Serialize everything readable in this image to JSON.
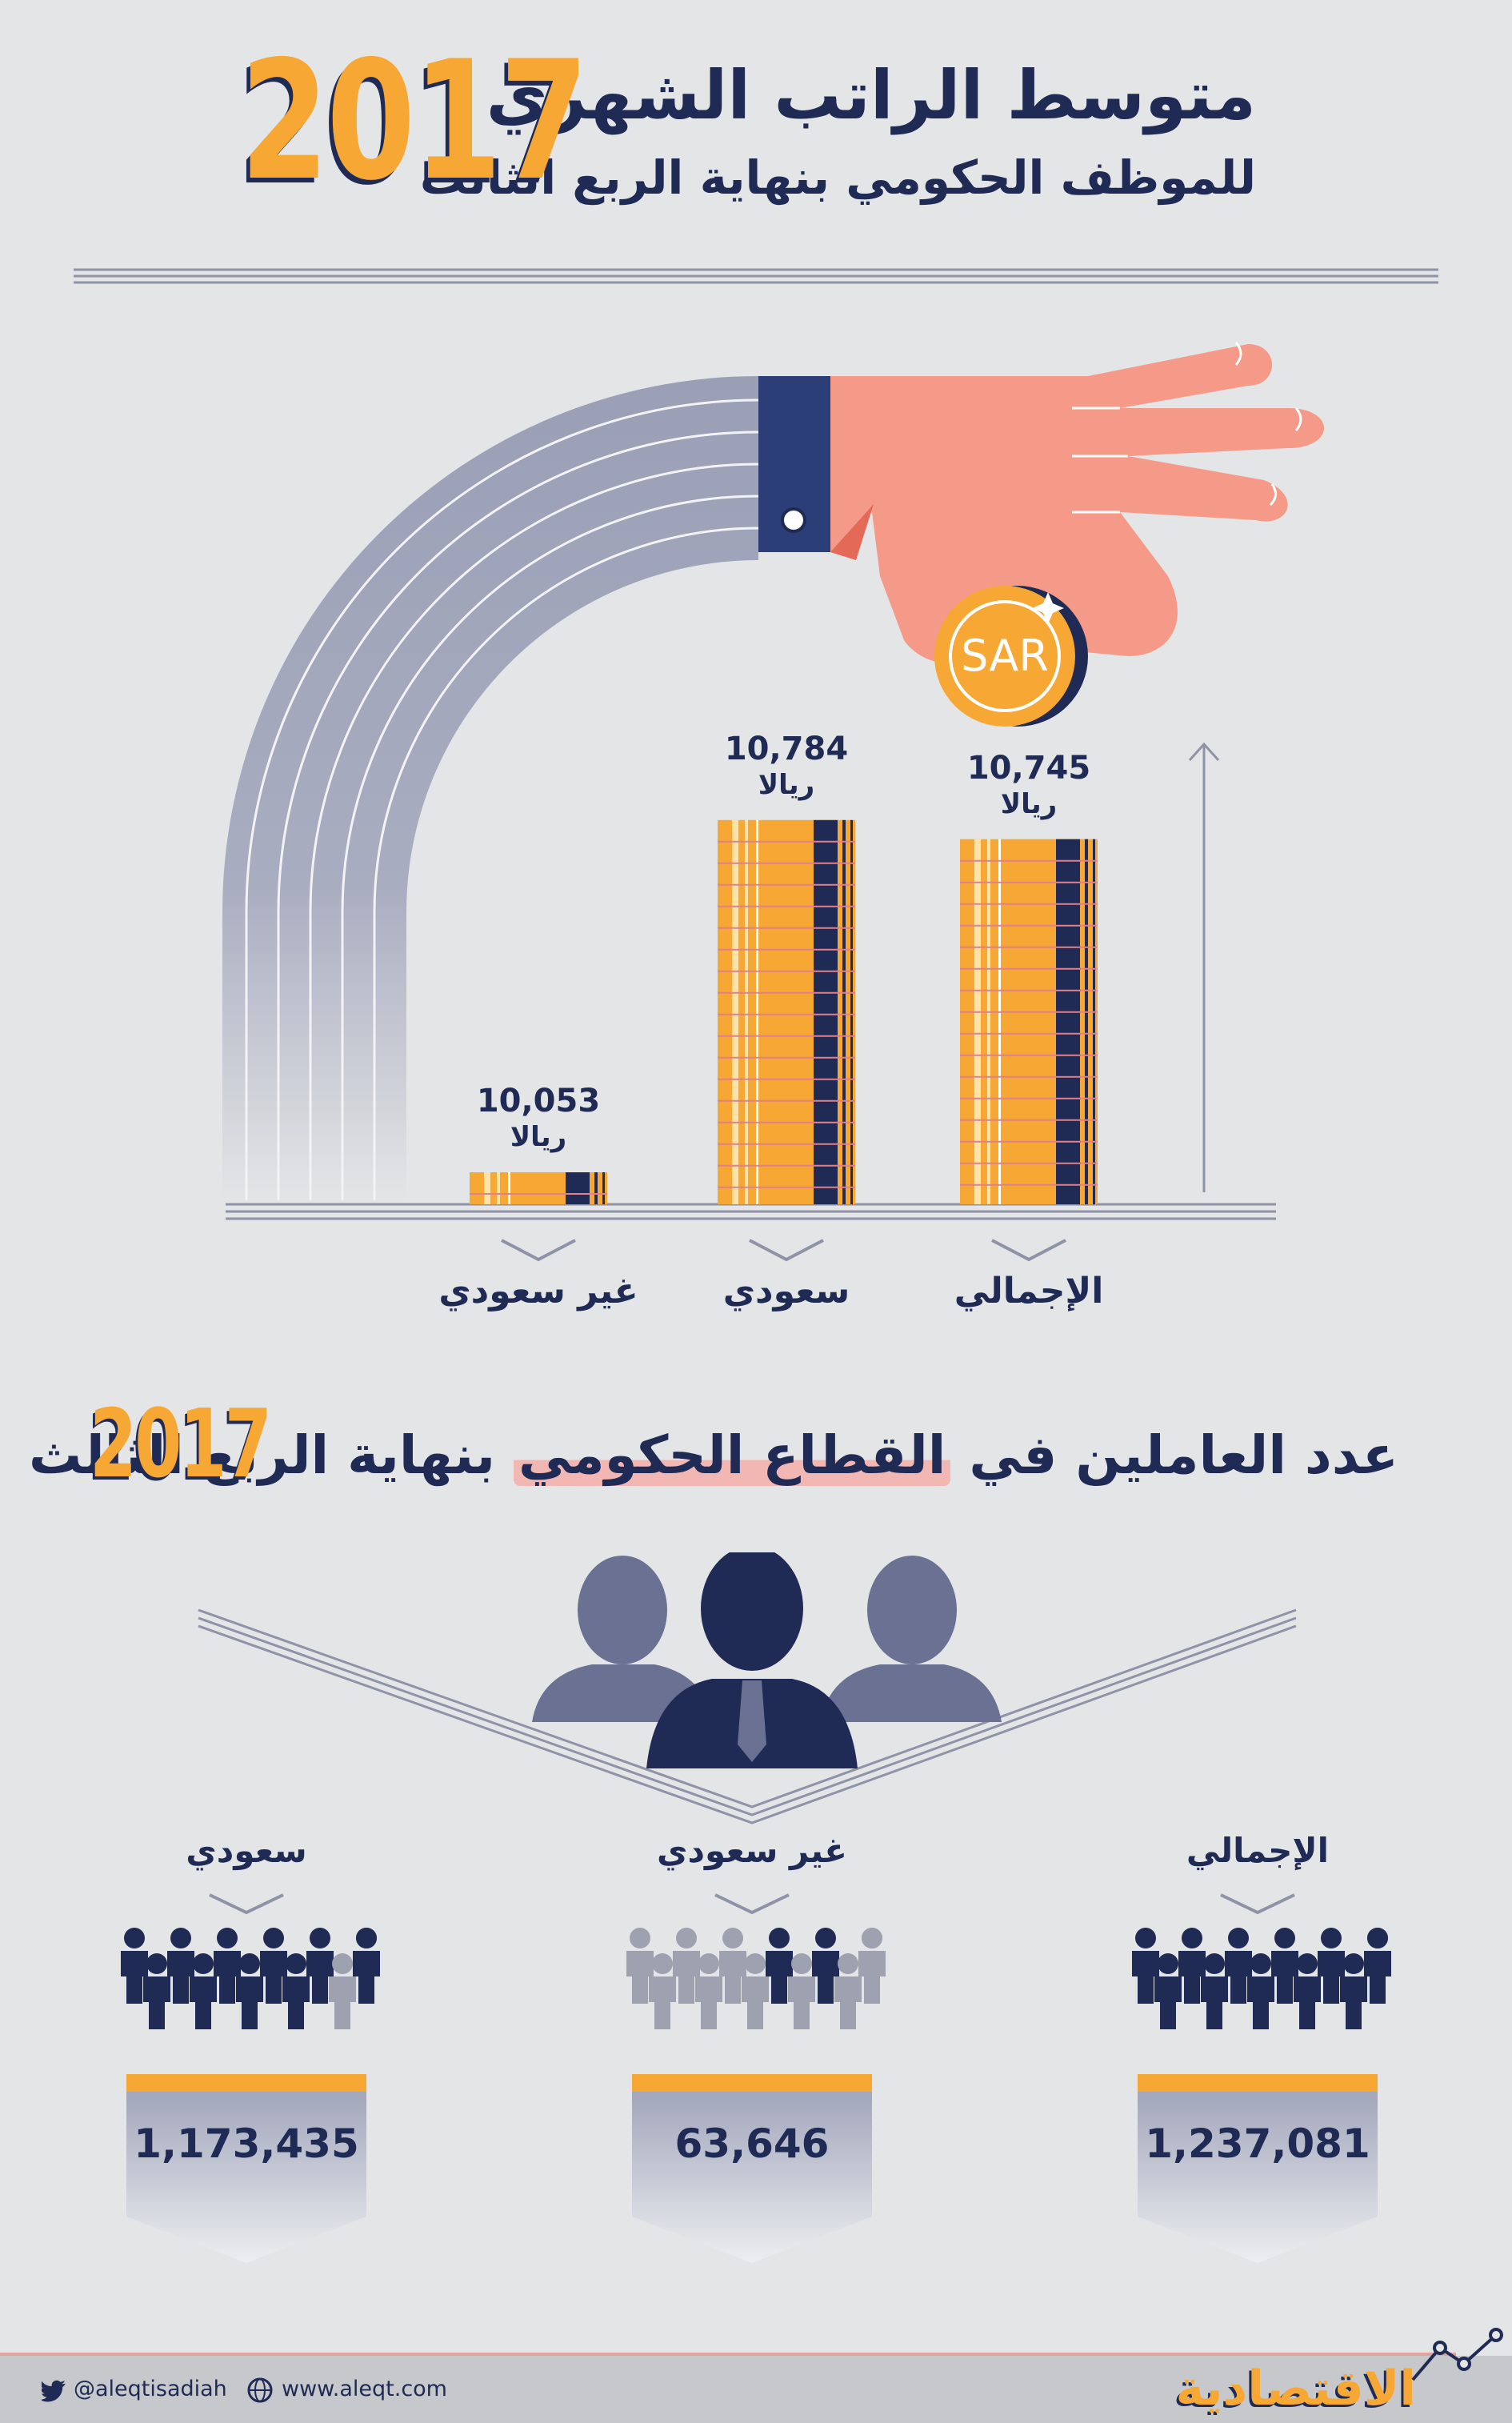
{
  "header": {
    "title": "متوسط الراتب الشهري",
    "subtitle": "للموظف الحكومي بنهاية الربع الثالث",
    "year": "2017"
  },
  "chart_data": {
    "type": "bar",
    "title": "متوسط الراتب الشهري للموظف الحكومي بنهاية الربع الثالث 2017",
    "unit": "ريالا",
    "categories": [
      "غير سعودي",
      "سعودي",
      "الإجمالي"
    ],
    "values": [
      10053,
      10784,
      10745
    ],
    "value_labels": [
      "10,053",
      "10,784",
      "10,745"
    ],
    "coin_label": "SAR",
    "colors": {
      "bar": "#f7a733",
      "stripe": "#1f2a55",
      "accent": "#f7a733",
      "navy": "#1f2a55"
    }
  },
  "employees": {
    "title_part1": "عدد العاملين في",
    "title_highlight": "القطاع الحكومي",
    "title_part2": "بنهاية الربع الثالث",
    "year": "2017",
    "groups": [
      {
        "label": "سعودي",
        "value": "1,173,435"
      },
      {
        "label": "غير سعودي",
        "value": "63,646"
      },
      {
        "label": "الإجمالي",
        "value": "1,237,081"
      }
    ]
  },
  "footer": {
    "twitter": "@aleqtisadiah",
    "website": "www.aleqt.com",
    "brand": "الاقتصادية",
    "icons": [
      "twitter-icon",
      "globe-icon"
    ]
  }
}
